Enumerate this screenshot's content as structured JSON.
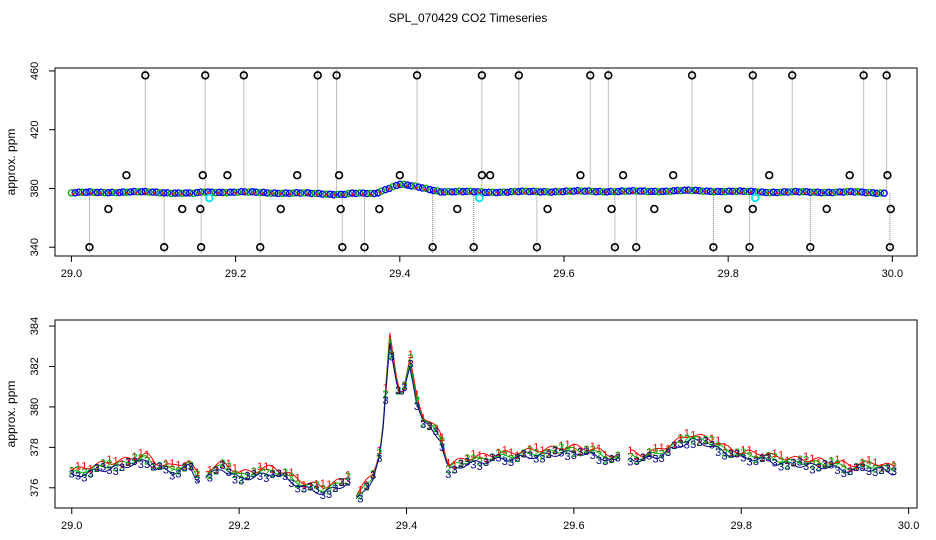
{
  "title": "SPL_070429  CO2 Timeseries",
  "colors": {
    "axis": "#000000",
    "spike": "#7f7f7f",
    "flag_black": "#000000",
    "flag_cyan": "#00e5ee",
    "series_blue": "#0000ff",
    "series_green": "#00b000",
    "series_red": "#ff0000",
    "series_darkblue": "#00008b"
  },
  "chart_data": [
    {
      "type": "scatter",
      "ylabel": "approx. ppm",
      "xlabel": "",
      "xlim": [
        28.98,
        30.03
      ],
      "ylim": [
        334,
        462
      ],
      "xticks": [
        "29.0",
        "29.2",
        "29.4",
        "29.6",
        "29.8",
        "30.0"
      ],
      "yticks": [
        "340",
        "380",
        "420",
        "460"
      ],
      "baseline": {
        "x": [
          29.0,
          29.05,
          29.1,
          29.15,
          29.16,
          29.2,
          29.25,
          29.3,
          29.33,
          29.34,
          29.37,
          29.385,
          29.4,
          29.42,
          29.45,
          29.5,
          29.6,
          29.66,
          29.7,
          29.75,
          29.8,
          29.85,
          29.9,
          29.95,
          29.99
        ],
        "y": [
          377,
          377.5,
          377.5,
          376.5,
          377.5,
          377.5,
          377,
          376.5,
          376,
          376.5,
          376.5,
          380,
          383,
          381,
          378,
          377.5,
          378,
          378,
          378,
          378.5,
          378,
          377.5,
          377.5,
          377.5,
          377
        ]
      },
      "flags_high": [
        29.09,
        29.163,
        29.21,
        29.3,
        29.323,
        29.421,
        29.5,
        29.545,
        29.632,
        29.654,
        29.756,
        29.83,
        29.878,
        29.965,
        29.993
      ],
      "flags_low": [
        29.022,
        29.113,
        29.158,
        29.23,
        29.33,
        29.357,
        29.44,
        29.49,
        29.567,
        29.662,
        29.688,
        29.782,
        29.826,
        29.9,
        29.997
      ],
      "flags_mid_high": [
        29.067,
        29.16,
        29.19,
        29.275,
        29.326,
        29.4,
        29.5,
        29.51,
        29.62,
        29.672,
        29.733,
        29.85,
        29.948,
        29.994
      ],
      "flags_mid_low": [
        29.045,
        29.135,
        29.157,
        29.255,
        29.328,
        29.375,
        29.47,
        29.58,
        29.658,
        29.71,
        29.8,
        29.83,
        29.92,
        29.998
      ],
      "cyan_points": [
        29.168,
        29.497,
        29.833
      ]
    },
    {
      "type": "line",
      "ylabel": "approx. ppm",
      "xlabel": "",
      "xlim": [
        28.98,
        30.01
      ],
      "ylim": [
        375,
        384.3
      ],
      "xticks": [
        "29.0",
        "29.2",
        "29.4",
        "29.6",
        "29.8",
        "30.0"
      ],
      "yticks": [
        "376",
        "378",
        "380",
        "382",
        "384"
      ],
      "profile": {
        "x": [
          29.0,
          29.03,
          29.06,
          29.09,
          29.1,
          29.12,
          29.14,
          29.15,
          29.16,
          29.18,
          29.2,
          29.22,
          29.24,
          29.26,
          29.28,
          29.3,
          29.32,
          29.33,
          29.34,
          29.36,
          29.37,
          29.38,
          29.39,
          29.395,
          29.405,
          29.41,
          29.42,
          29.44,
          29.45,
          29.47,
          29.5,
          29.55,
          29.6,
          29.63,
          29.65,
          29.66,
          29.68,
          29.7,
          29.72,
          29.74,
          29.76,
          29.78,
          29.8,
          29.82,
          29.84,
          29.86,
          29.9,
          29.93,
          29.96,
          29.98
        ],
        "y": [
          376.6,
          376.9,
          377.1,
          377.4,
          377.0,
          376.8,
          377.1,
          376.4,
          376.6,
          377.0,
          376.5,
          376.6,
          376.8,
          376.4,
          376.0,
          375.8,
          376.1,
          376.3,
          375.4,
          376.5,
          377.8,
          383.3,
          380.8,
          380.4,
          382.2,
          380.6,
          379.3,
          378.5,
          376.9,
          377.2,
          377.4,
          377.6,
          377.8,
          377.6,
          377.3,
          377.6,
          377.4,
          377.6,
          378.0,
          378.4,
          378.2,
          377.8,
          377.5,
          377.5,
          377.3,
          377.2,
          377.1,
          376.9,
          377.0,
          376.8
        ]
      },
      "series": [
        {
          "name": "1",
          "color_key": "series_red",
          "offset": 0.25
        },
        {
          "name": "2",
          "color_key": "series_green",
          "offset": 0.1
        },
        {
          "name": "3",
          "color_key": "series_darkblue",
          "offset": -0.05
        }
      ],
      "glyphs": [
        "1",
        "2",
        "3"
      ]
    }
  ]
}
